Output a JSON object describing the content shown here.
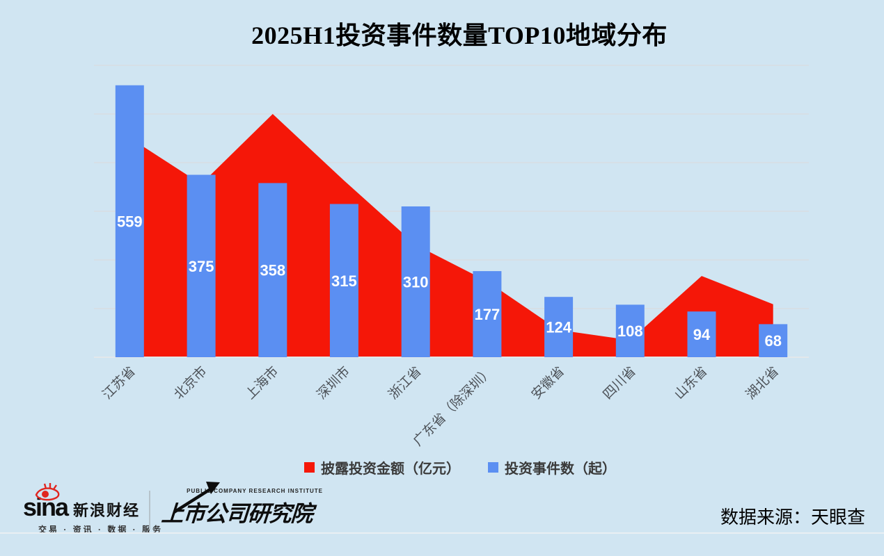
{
  "title": "2025H1投资事件数量TOP10地域分布",
  "chart_data": {
    "type": "combo",
    "title": "2025H1投资事件数量TOP10地域分布",
    "categories": [
      "江苏省",
      "北京市",
      "上海市",
      "深圳市",
      "浙江省",
      "广东省（除深圳）",
      "安徽省",
      "四川省",
      "山东省",
      "湖北省"
    ],
    "series": [
      {
        "name": "披露投资金额（亿元）",
        "type": "area",
        "color": "#f51708",
        "values_estimated": [
          451,
          356,
          500,
          363,
          231,
          156,
          56,
          35,
          167,
          109
        ],
        "note": "no numeric labels shown for this series in the image; values estimated from area height against the hidden 0-600 gridline scale"
      },
      {
        "name": "投资事件数（起）",
        "type": "bar",
        "color": "#5b8ff2",
        "values": [
          559,
          375,
          358,
          315,
          310,
          177,
          124,
          108,
          94,
          68
        ]
      }
    ],
    "ylim": [
      0,
      600
    ],
    "gridline_step": 100,
    "grid": true,
    "y_axis_labels_visible": false,
    "legend_position": "bottom",
    "x_label_rotation_deg": 45
  },
  "legend": {
    "items": [
      {
        "label": "披露投资金额（亿元）",
        "color": "#f51708"
      },
      {
        "label": "投资事件数（起）",
        "color": "#5b8ff2"
      }
    ]
  },
  "footer": {
    "sina_wordmark": "sina",
    "sina_brand": "新浪财经",
    "sina_tagline": "交易 · 资讯 · 数据 · 服务",
    "institute_en": "PUBLIC COMPANY RESEARCH INSTITUTE",
    "institute_cn": "上市公司研究院",
    "source": "数据来源：天眼查"
  },
  "colors": {
    "background": "#d0e5f2",
    "bar": "#5b8ff2",
    "area": "#f51708",
    "gridline": "#d9dcdf",
    "axis_label": "#4e5359",
    "bar_label": "#ffffff",
    "legend_text": "#333333"
  }
}
